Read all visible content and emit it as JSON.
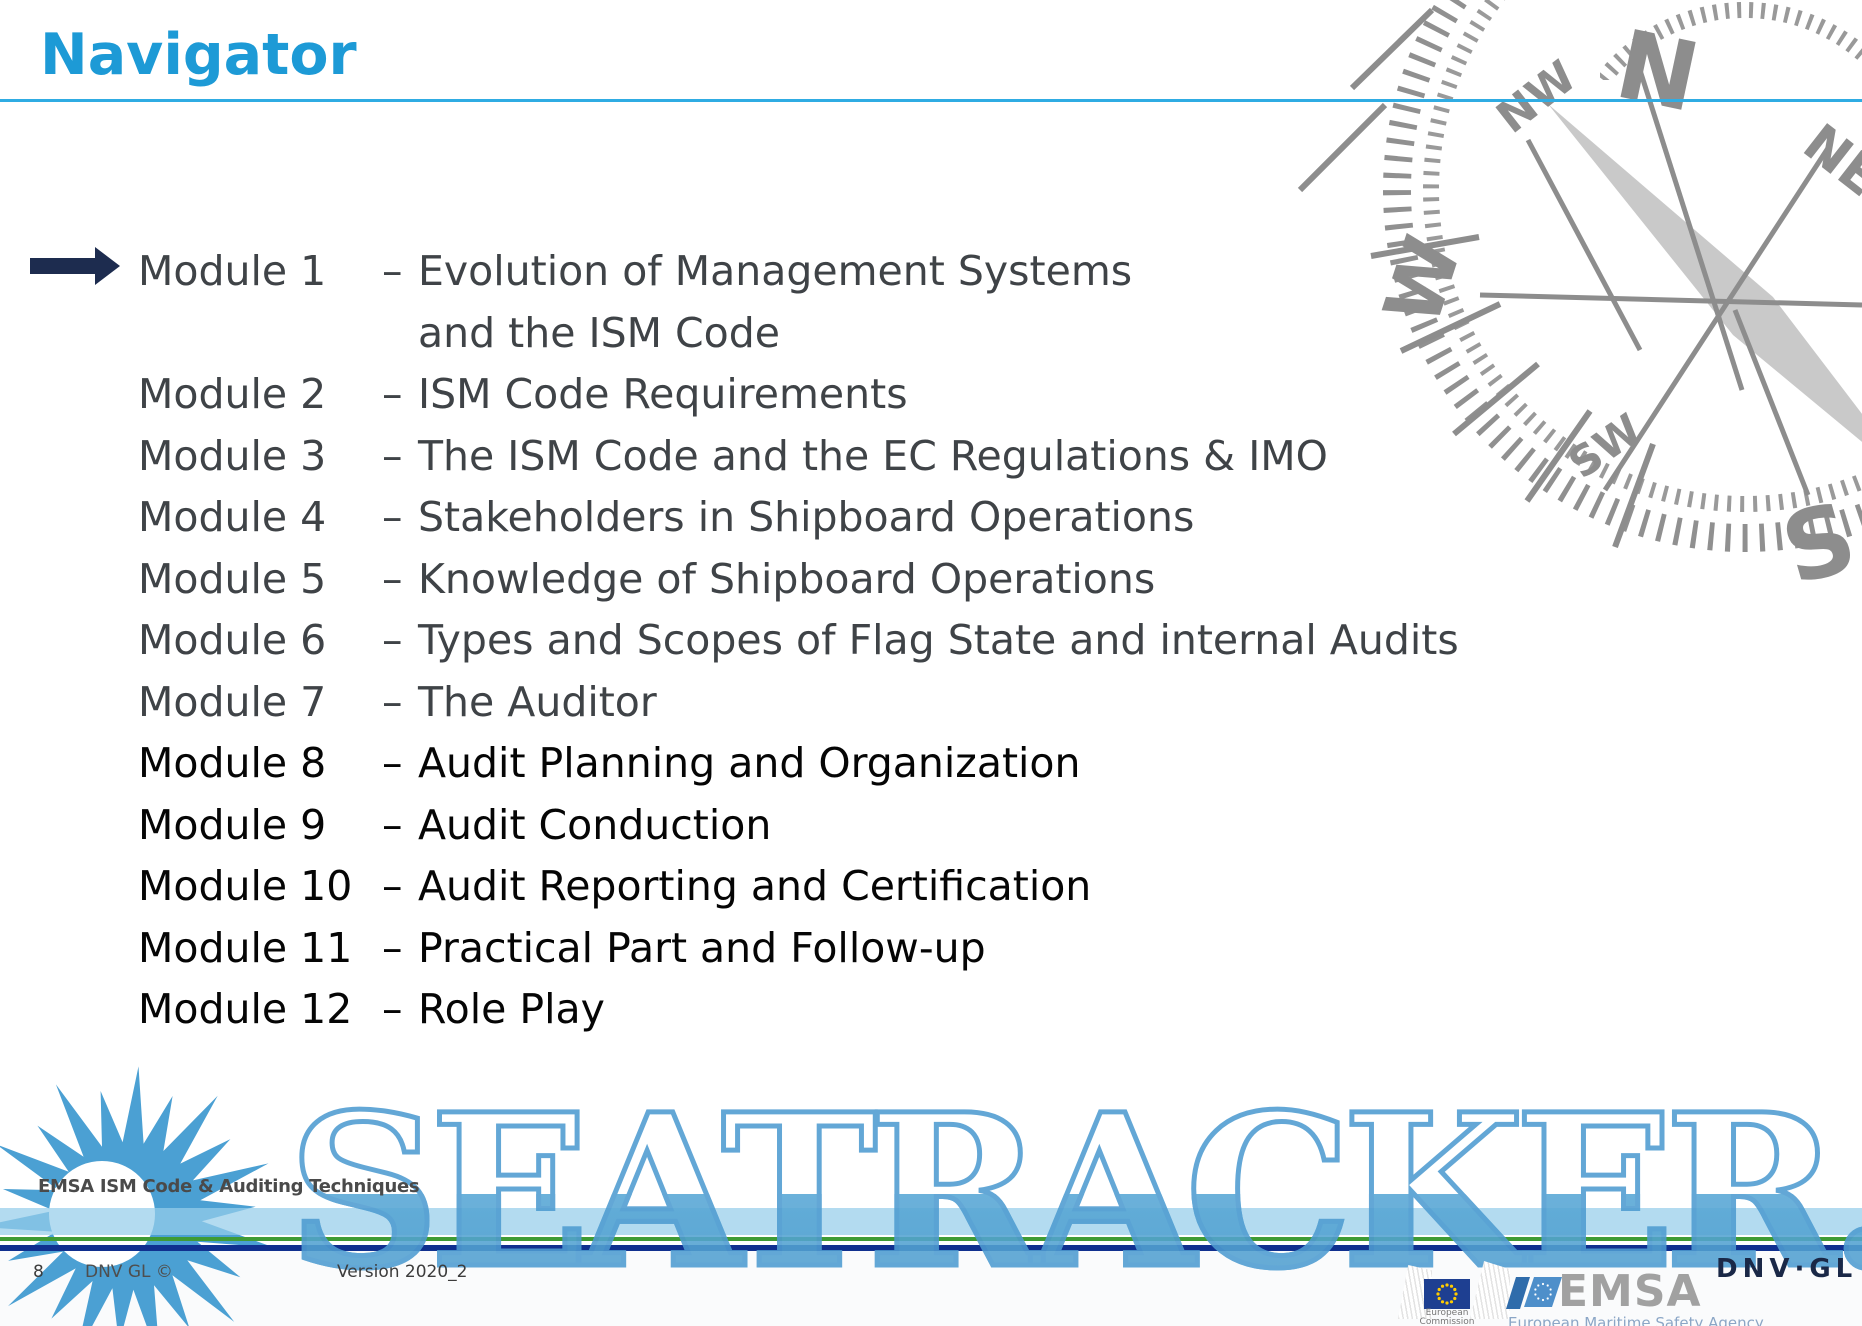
{
  "page_title": "Navigator",
  "separator": "–",
  "modules": [
    {
      "num": "Module 1",
      "lines": [
        "Evolution of Management Systems",
        "and the ISM Code"
      ],
      "tone": "gray",
      "current": true
    },
    {
      "num": "Module 2",
      "lines": [
        "ISM Code Requirements"
      ],
      "tone": "gray",
      "current": false
    },
    {
      "num": "Module 3",
      "lines": [
        "The ISM Code and the EC Regulations & IMO"
      ],
      "tone": "gray",
      "current": false
    },
    {
      "num": "Module 4",
      "lines": [
        "Stakeholders in Shipboard Operations"
      ],
      "tone": "gray",
      "current": false
    },
    {
      "num": "Module 5",
      "lines": [
        "Knowledge of Shipboard Operations"
      ],
      "tone": "gray",
      "current": false
    },
    {
      "num": "Module 6",
      "lines": [
        "Types and Scopes of Flag State and internal Audits"
      ],
      "tone": "gray",
      "current": false
    },
    {
      "num": "Module 7",
      "lines": [
        "The Auditor"
      ],
      "tone": "gray",
      "current": false
    },
    {
      "num": "Module 8",
      "lines": [
        "Audit Planning and Organization"
      ],
      "tone": "black",
      "current": false
    },
    {
      "num": "Module 9",
      "lines": [
        "Audit Conduction"
      ],
      "tone": "black",
      "current": false
    },
    {
      "num": "Module 10",
      "lines": [
        "Audit Reporting and Certification"
      ],
      "tone": "black",
      "current": false
    },
    {
      "num": "Module 11",
      "lines": [
        "Practical Part and Follow-up"
      ],
      "tone": "black",
      "current": false
    },
    {
      "num": "Module 12",
      "lines": [
        "Role Play"
      ],
      "tone": "black",
      "current": false
    }
  ],
  "compass": {
    "labels": {
      "n": "N",
      "ne": "NE",
      "nw": "NW",
      "w": "W",
      "sw": "SW",
      "s": "S"
    }
  },
  "watermark": {
    "text": "SEATRACKER.RU"
  },
  "footer": {
    "course": "EMSA ISM Code & Auditing Techniques",
    "page_number": "8",
    "copyright": "DNV GL ©",
    "version": "Version 2020_2"
  },
  "logos": {
    "eu": {
      "line1": "European",
      "line2": "Commission"
    },
    "emsa": {
      "name": "EMSA",
      "subtitle": "European Maritime Safety Agency"
    },
    "dnvgl": {
      "name": "DNV·GL"
    }
  },
  "colors": {
    "title_blue": "#1D9AD6",
    "accent_blue": "#2FACE3",
    "arrow_navy": "#1D2C4F",
    "band_blue": "#AAD6EC",
    "line_green": "#3F9B35",
    "line_navy": "#10308F",
    "watermark_blue": "#4E9CD1",
    "compass_gray": "#8D8D8D"
  }
}
